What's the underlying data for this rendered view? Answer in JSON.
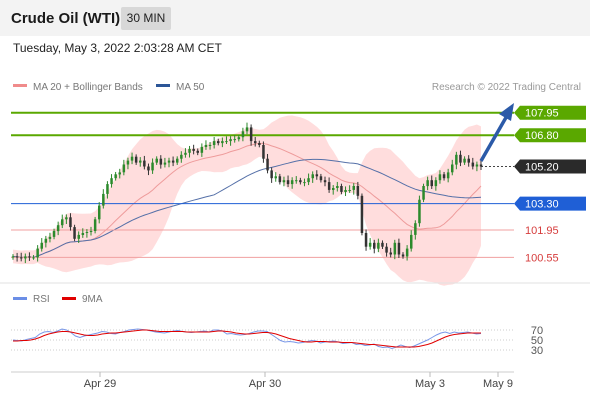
{
  "header": {
    "instrument": "Crude Oil (WTI)",
    "timeframe": "30 MIN"
  },
  "timestamp": "Tuesday, May 3, 2022 2:03:28 AM CET",
  "legend": {
    "ma20": "MA 20 + Bollinger Bands",
    "ma50": "MA 50",
    "copyright": "Research © 2022 Trading Central"
  },
  "rsi_legend": {
    "rsi": "RSI",
    "ma9": "9MA"
  },
  "colors": {
    "resistance": "#5aa800",
    "support": "#1f5fd6",
    "level_line": "#f0a0a0",
    "level_text": "#d63c3c",
    "candle": "#2c8a2c",
    "candle_down": "#333333",
    "bollinger": "#ffd7d7",
    "ma20": "#ee9b9b",
    "ma50": "#5570a8",
    "last_price_bg": "#2a2a2a",
    "rsi_line": "#7a98e8",
    "rsi_ma": "#e00000",
    "arrow": "#2b5aa8"
  },
  "chart_data": {
    "type": "candlestick",
    "ylim": [
      99.6,
      108.6
    ],
    "x_ticks": [
      "Apr 29",
      "Apr 30",
      "May 3",
      "May 9"
    ],
    "last_price": 105.2,
    "levels": [
      {
        "value": 107.95,
        "label": "107.95",
        "kind": "resistance"
      },
      {
        "value": 106.8,
        "label": "106.80",
        "kind": "resistance"
      },
      {
        "value": 103.3,
        "label": "103.30",
        "kind": "support"
      },
      {
        "value": 101.95,
        "label": "101.95",
        "kind": "level"
      },
      {
        "value": 100.55,
        "label": "100.55",
        "kind": "level"
      }
    ],
    "closes": [
      100.6,
      100.55,
      100.5,
      100.6,
      100.55,
      100.55,
      101.0,
      101.3,
      101.5,
      101.6,
      101.9,
      102.2,
      102.5,
      102.6,
      102.1,
      101.5,
      101.7,
      101.8,
      101.85,
      101.9,
      102.5,
      103.2,
      103.8,
      104.3,
      104.6,
      104.8,
      104.9,
      105.3,
      105.5,
      105.7,
      105.4,
      105.5,
      105.2,
      105.0,
      105.4,
      105.6,
      105.3,
      105.4,
      105.5,
      105.4,
      105.6,
      105.8,
      105.9,
      106.1,
      106.0,
      105.9,
      106.2,
      106.3,
      106.3,
      106.5,
      106.4,
      106.5,
      106.5,
      106.6,
      106.6,
      106.7,
      107.0,
      107.2,
      106.5,
      106.4,
      106.3,
      105.6,
      105.0,
      104.6,
      104.7,
      104.4,
      104.5,
      104.3,
      104.5,
      104.5,
      104.4,
      104.4,
      104.6,
      104.8,
      104.7,
      104.5,
      104.4,
      104.0,
      104.1,
      104.2,
      103.9,
      104.0,
      104.0,
      104.2,
      103.7,
      101.8,
      101.1,
      101.3,
      101.0,
      101.3,
      101.1,
      100.8,
      100.7,
      101.3,
      100.7,
      100.6,
      101.0,
      101.7,
      102.3,
      103.5,
      104.2,
      104.5,
      104.2,
      104.5,
      104.8,
      104.6,
      104.9,
      105.3,
      105.8,
      105.4,
      105.6,
      105.4,
      105.2,
      105.3,
      105.2
    ],
    "rsi": {
      "ticks": [
        70,
        50,
        30
      ],
      "values": [
        50,
        49,
        48,
        51,
        53,
        55,
        62,
        66,
        67,
        65,
        68,
        72,
        70,
        65,
        58,
        55,
        58,
        60,
        62,
        64,
        67,
        66,
        63,
        62,
        65,
        67,
        70,
        71,
        72,
        71,
        70,
        68,
        66,
        65,
        64,
        66,
        68,
        69,
        67,
        66,
        65,
        66,
        67,
        68,
        66,
        70,
        70,
        68,
        62,
        63,
        61,
        60,
        61,
        63,
        66,
        68,
        68,
        67,
        61,
        55,
        49,
        46,
        47,
        46,
        44,
        45,
        47,
        49,
        48,
        44,
        46,
        47,
        48,
        46,
        43,
        44,
        45,
        41,
        42,
        39,
        40,
        42,
        37,
        35,
        36,
        33,
        36,
        40,
        37,
        35,
        38,
        42,
        46,
        50,
        55,
        60,
        64,
        66,
        63,
        66,
        64,
        65,
        66,
        64,
        62,
        63
      ]
    },
    "rsi_ma": [
      48,
      48,
      49,
      49,
      50,
      52,
      55,
      59,
      62,
      64,
      66,
      67,
      67,
      66,
      64,
      62,
      60,
      59,
      59,
      60,
      62,
      63,
      64,
      64,
      65,
      66,
      67,
      68,
      69,
      70,
      70,
      69,
      68,
      67,
      67,
      67,
      67,
      67,
      67,
      66,
      66,
      66,
      66,
      66,
      66,
      67,
      68,
      68,
      67,
      66,
      64,
      63,
      62,
      62,
      63,
      64,
      65,
      65,
      64,
      62,
      59,
      56,
      53,
      51,
      49,
      47,
      46,
      46,
      47,
      47,
      47,
      46,
      46,
      46,
      45,
      45,
      45,
      44,
      43,
      42,
      41,
      41,
      40,
      39,
      38,
      37,
      36,
      36,
      36,
      36,
      36,
      37,
      39,
      41,
      44,
      48,
      52,
      56,
      59,
      61,
      62,
      63,
      64,
      64,
      64,
      64
    ]
  }
}
